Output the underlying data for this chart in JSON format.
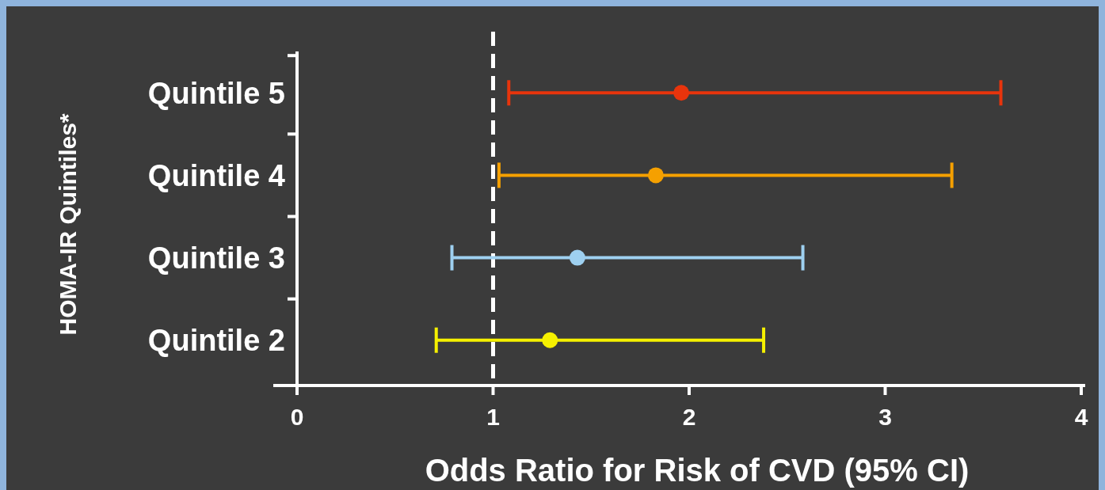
{
  "chart_data": {
    "type": "scatter",
    "orientation": "horizontal",
    "ylabel": "HOMA-IR Quintiles*",
    "xlabel": "Odds Ratio for Risk of CVD (95% CI)",
    "categories": [
      "Quintile 5",
      "Quintile 4",
      "Quintile 3",
      "Quintile 2"
    ],
    "values": [
      1.96,
      1.83,
      1.43,
      1.29
    ],
    "errors": [
      [
        1.08,
        3.59
      ],
      [
        1.03,
        3.34
      ],
      [
        0.79,
        2.58
      ],
      [
        0.71,
        2.38
      ]
    ],
    "colors": [
      "#e8340c",
      "#f5a000",
      "#9ed0f0",
      "#f5f000"
    ],
    "xlim": [
      0,
      4
    ],
    "xticks": [
      0,
      1,
      2,
      3,
      4
    ],
    "ref_lines": [
      {
        "axis": "x",
        "value": 1,
        "color": "#ffffff",
        "line_style": "dashed"
      }
    ],
    "marker": "circle",
    "grid": false
  }
}
